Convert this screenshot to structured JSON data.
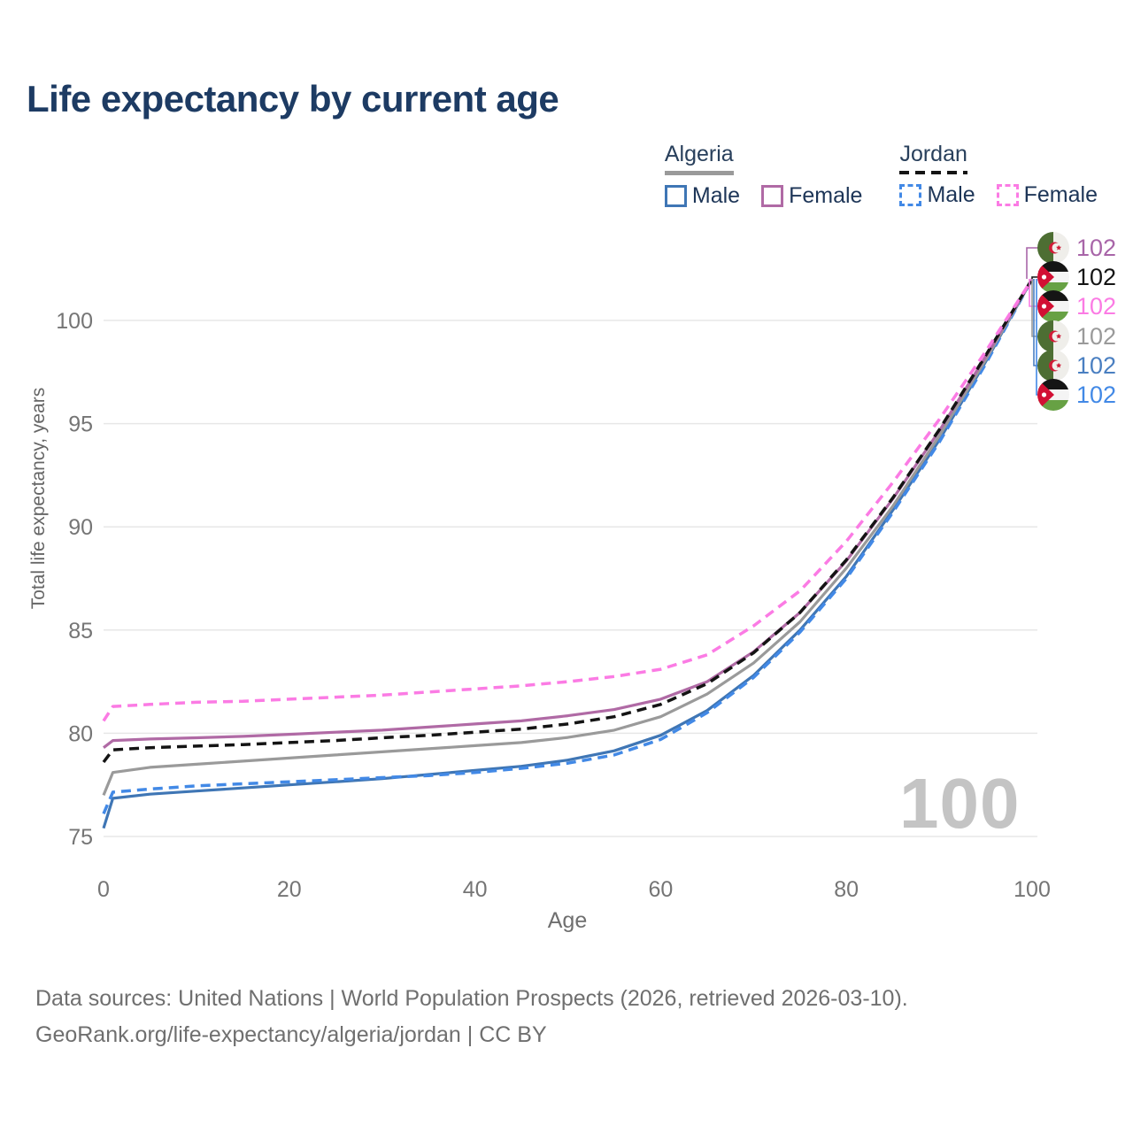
{
  "title": "Life expectancy by current age",
  "watermark": "100",
  "colors": {
    "title": "#1d3b63",
    "grid": "#e7e7e7",
    "tick": "#757575",
    "algeria_male": "#3f76b5",
    "algeria_female": "#b06aa5",
    "algeria_all": "#9a9a9a",
    "jordan_male": "#4289e6",
    "jordan_female": "#fb7be4",
    "jordan_all": "#141414"
  },
  "legend": {
    "groups": [
      {
        "label": "Algeria",
        "underline": "solid",
        "items": [
          {
            "label": "Male",
            "color_key": "algeria_male",
            "dashed": false
          },
          {
            "label": "Female",
            "color_key": "algeria_female",
            "dashed": false
          }
        ]
      },
      {
        "label": "Jordan",
        "underline": "dashed",
        "items": [
          {
            "label": "Male",
            "color_key": "jordan_male",
            "dashed": true
          },
          {
            "label": "Female",
            "color_key": "jordan_female",
            "dashed": true
          }
        ]
      }
    ]
  },
  "axes": {
    "y_label": "Total life expectancy, years",
    "x_label": "Age",
    "y_ticks": [
      75,
      80,
      85,
      90,
      95,
      100
    ],
    "x_ticks": [
      0,
      20,
      40,
      60,
      80,
      100
    ],
    "y_range": [
      75,
      102
    ],
    "x_range": [
      0,
      100
    ]
  },
  "end_labels": [
    {
      "country": "algeria",
      "value": "102",
      "color": "#a865a8"
    },
    {
      "country": "jordan",
      "value": "102",
      "color": "#141414"
    },
    {
      "country": "jordan",
      "value": "102",
      "color": "#fb7be4"
    },
    {
      "country": "algeria",
      "value": "102",
      "color": "#9a9a9a"
    },
    {
      "country": "algeria",
      "value": "102",
      "color": "#4a7fc1"
    },
    {
      "country": "jordan",
      "value": "102",
      "color": "#4289e6"
    }
  ],
  "footer": {
    "line1": "Data sources: United Nations | World Population Prospects (2026, retrieved 2026-03-10).",
    "line2": "GeoRank.org/life-expectancy/algeria/jordan | CC BY"
  },
  "chart_data": {
    "type": "line",
    "title": "Life expectancy by current age",
    "xlabel": "Age",
    "ylabel": "Total life expectancy, years",
    "xlim": [
      0,
      100
    ],
    "ylim": [
      75,
      102
    ],
    "grid": "horizontal",
    "legend_position": "top-right",
    "x": [
      0,
      1,
      5,
      10,
      15,
      20,
      25,
      30,
      35,
      40,
      45,
      50,
      55,
      60,
      65,
      70,
      75,
      80,
      85,
      90,
      95,
      100
    ],
    "series": [
      {
        "name": "Algeria Male",
        "color_key": "algeria_male",
        "dash": false,
        "values": [
          75.4,
          76.85,
          77.05,
          77.2,
          77.35,
          77.5,
          77.65,
          77.8,
          78.0,
          78.2,
          78.4,
          78.7,
          79.15,
          79.9,
          81.1,
          82.8,
          85.0,
          87.6,
          90.8,
          94.2,
          98.0,
          102
        ]
      },
      {
        "name": "Jordan Male",
        "color_key": "jordan_male",
        "dash": true,
        "values": [
          76.1,
          77.15,
          77.3,
          77.45,
          77.55,
          77.65,
          77.75,
          77.85,
          77.95,
          78.1,
          78.3,
          78.55,
          78.95,
          79.7,
          81.0,
          82.7,
          84.9,
          87.5,
          90.7,
          94.1,
          97.9,
          102
        ]
      },
      {
        "name": "Algeria (all)",
        "color_key": "algeria_all",
        "dash": false,
        "values": [
          77.0,
          78.1,
          78.35,
          78.5,
          78.65,
          78.8,
          78.95,
          79.1,
          79.25,
          79.4,
          79.55,
          79.8,
          80.15,
          80.8,
          81.9,
          83.4,
          85.4,
          88.0,
          91.0,
          94.4,
          98.1,
          102
        ]
      },
      {
        "name": "Algeria Female",
        "color_key": "algeria_female",
        "dash": false,
        "values": [
          79.3,
          79.65,
          79.72,
          79.78,
          79.85,
          79.95,
          80.05,
          80.15,
          80.3,
          80.45,
          80.6,
          80.85,
          81.15,
          81.65,
          82.5,
          83.95,
          85.85,
          88.35,
          91.35,
          94.65,
          98.25,
          102
        ]
      },
      {
        "name": "Jordan (all)",
        "color_key": "jordan_all",
        "dash": true,
        "values": [
          78.6,
          79.2,
          79.3,
          79.38,
          79.45,
          79.55,
          79.65,
          79.78,
          79.9,
          80.05,
          80.2,
          80.45,
          80.8,
          81.4,
          82.4,
          83.9,
          85.85,
          88.4,
          91.4,
          94.7,
          98.3,
          102
        ]
      },
      {
        "name": "Jordan Female",
        "color_key": "jordan_female",
        "dash": true,
        "values": [
          80.6,
          81.3,
          81.4,
          81.5,
          81.55,
          81.65,
          81.75,
          81.85,
          82.0,
          82.15,
          82.3,
          82.5,
          82.75,
          83.1,
          83.8,
          85.2,
          86.9,
          89.3,
          92.15,
          95.2,
          98.5,
          102
        ]
      }
    ]
  }
}
